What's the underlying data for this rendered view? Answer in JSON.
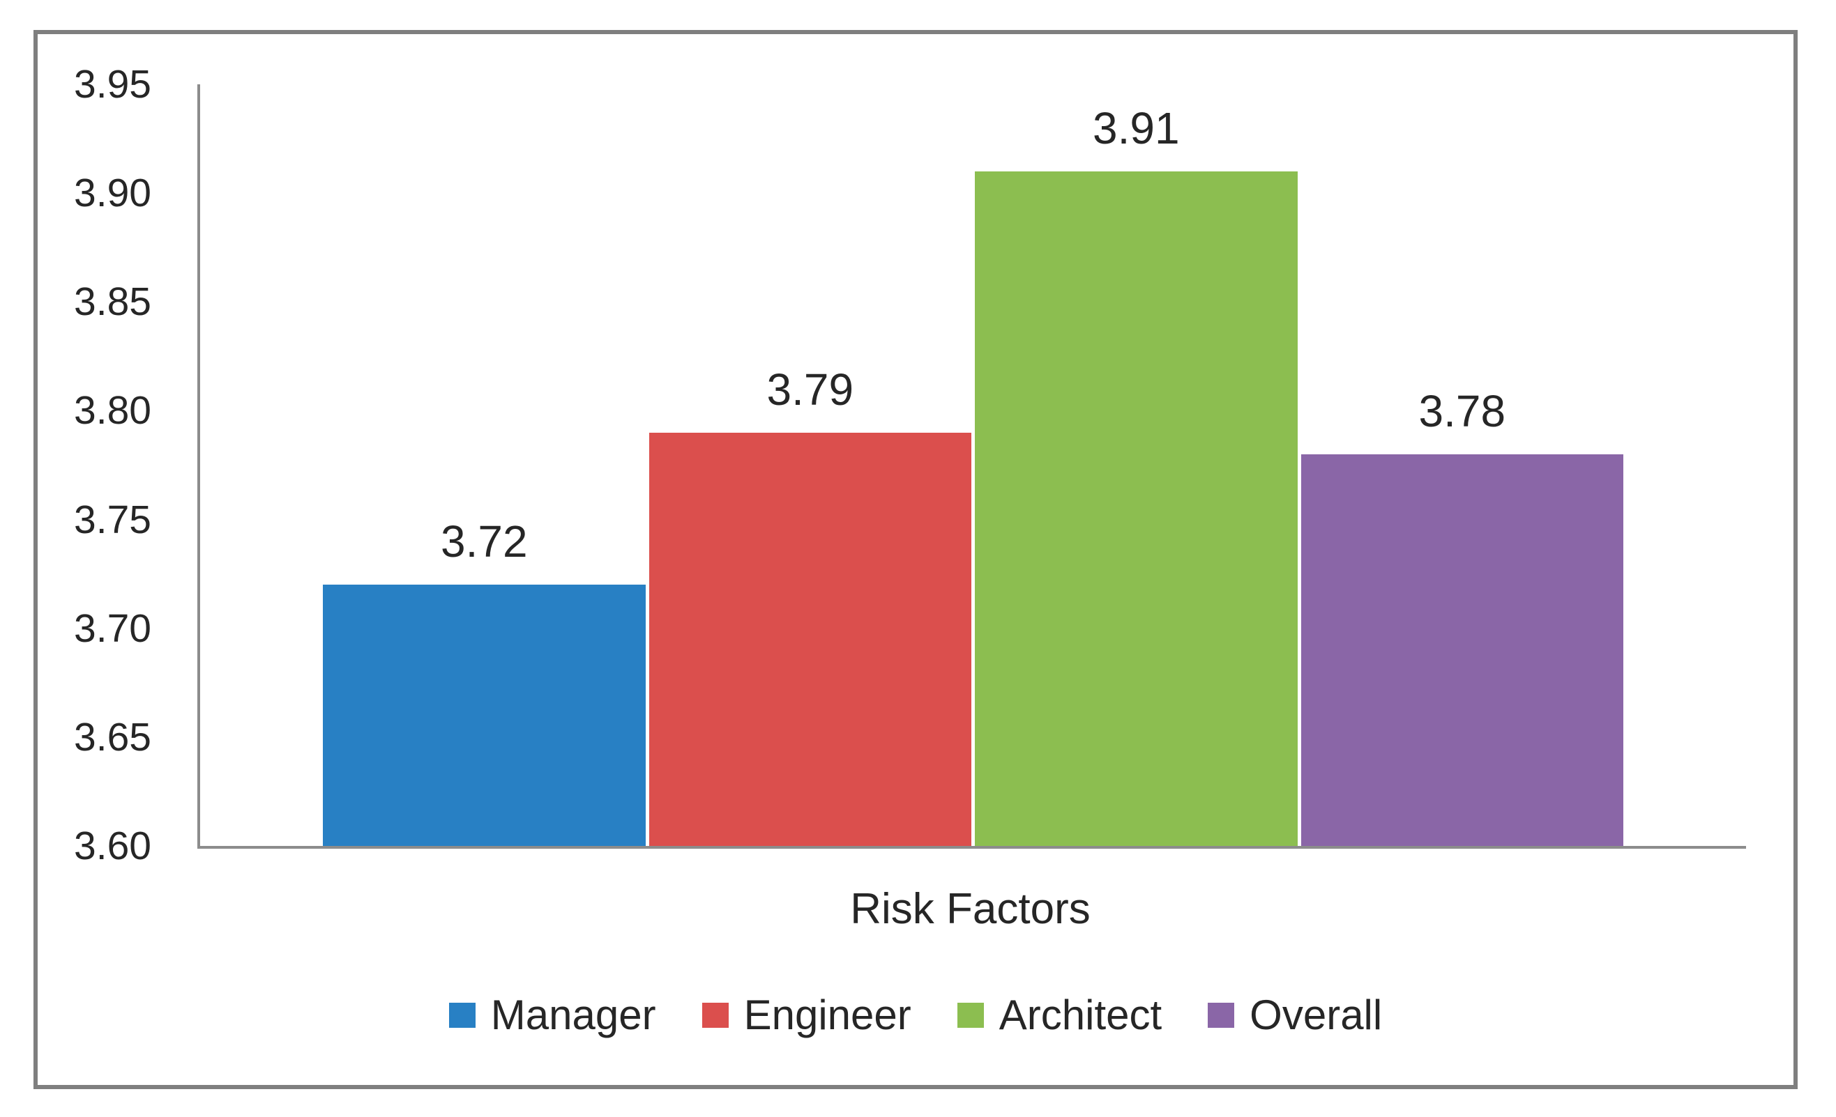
{
  "chart_data": {
    "type": "bar",
    "title": "",
    "xlabel": "Risk Factors",
    "ylabel": "",
    "categories": [
      "Risk Factors"
    ],
    "series": [
      {
        "name": "Manager",
        "value": 3.72,
        "label": "3.72",
        "color": "#2880C4"
      },
      {
        "name": "Engineer",
        "value": 3.79,
        "label": "3.79",
        "color": "#DB4F4D"
      },
      {
        "name": "Architect",
        "value": 3.91,
        "label": "3.91",
        "color": "#8CBE50"
      },
      {
        "name": "Overall",
        "value": 3.78,
        "label": "3.78",
        "color": "#8A66A7"
      }
    ],
    "ylim": [
      3.6,
      3.95
    ],
    "ytick_step": 0.05,
    "yticks": [
      "3.95",
      "3.90",
      "3.85",
      "3.80",
      "3.75",
      "3.70",
      "3.65",
      "3.60"
    ],
    "grid": false,
    "data_labels": true,
    "legend_position": "bottom",
    "legend": [
      "Manager",
      "Engineer",
      "Architect",
      "Overall"
    ]
  },
  "colors": {
    "axis": "#8C8C8C",
    "frame_border": "#7F7F7F",
    "text": "#262626",
    "background": "#FFFFFF"
  }
}
